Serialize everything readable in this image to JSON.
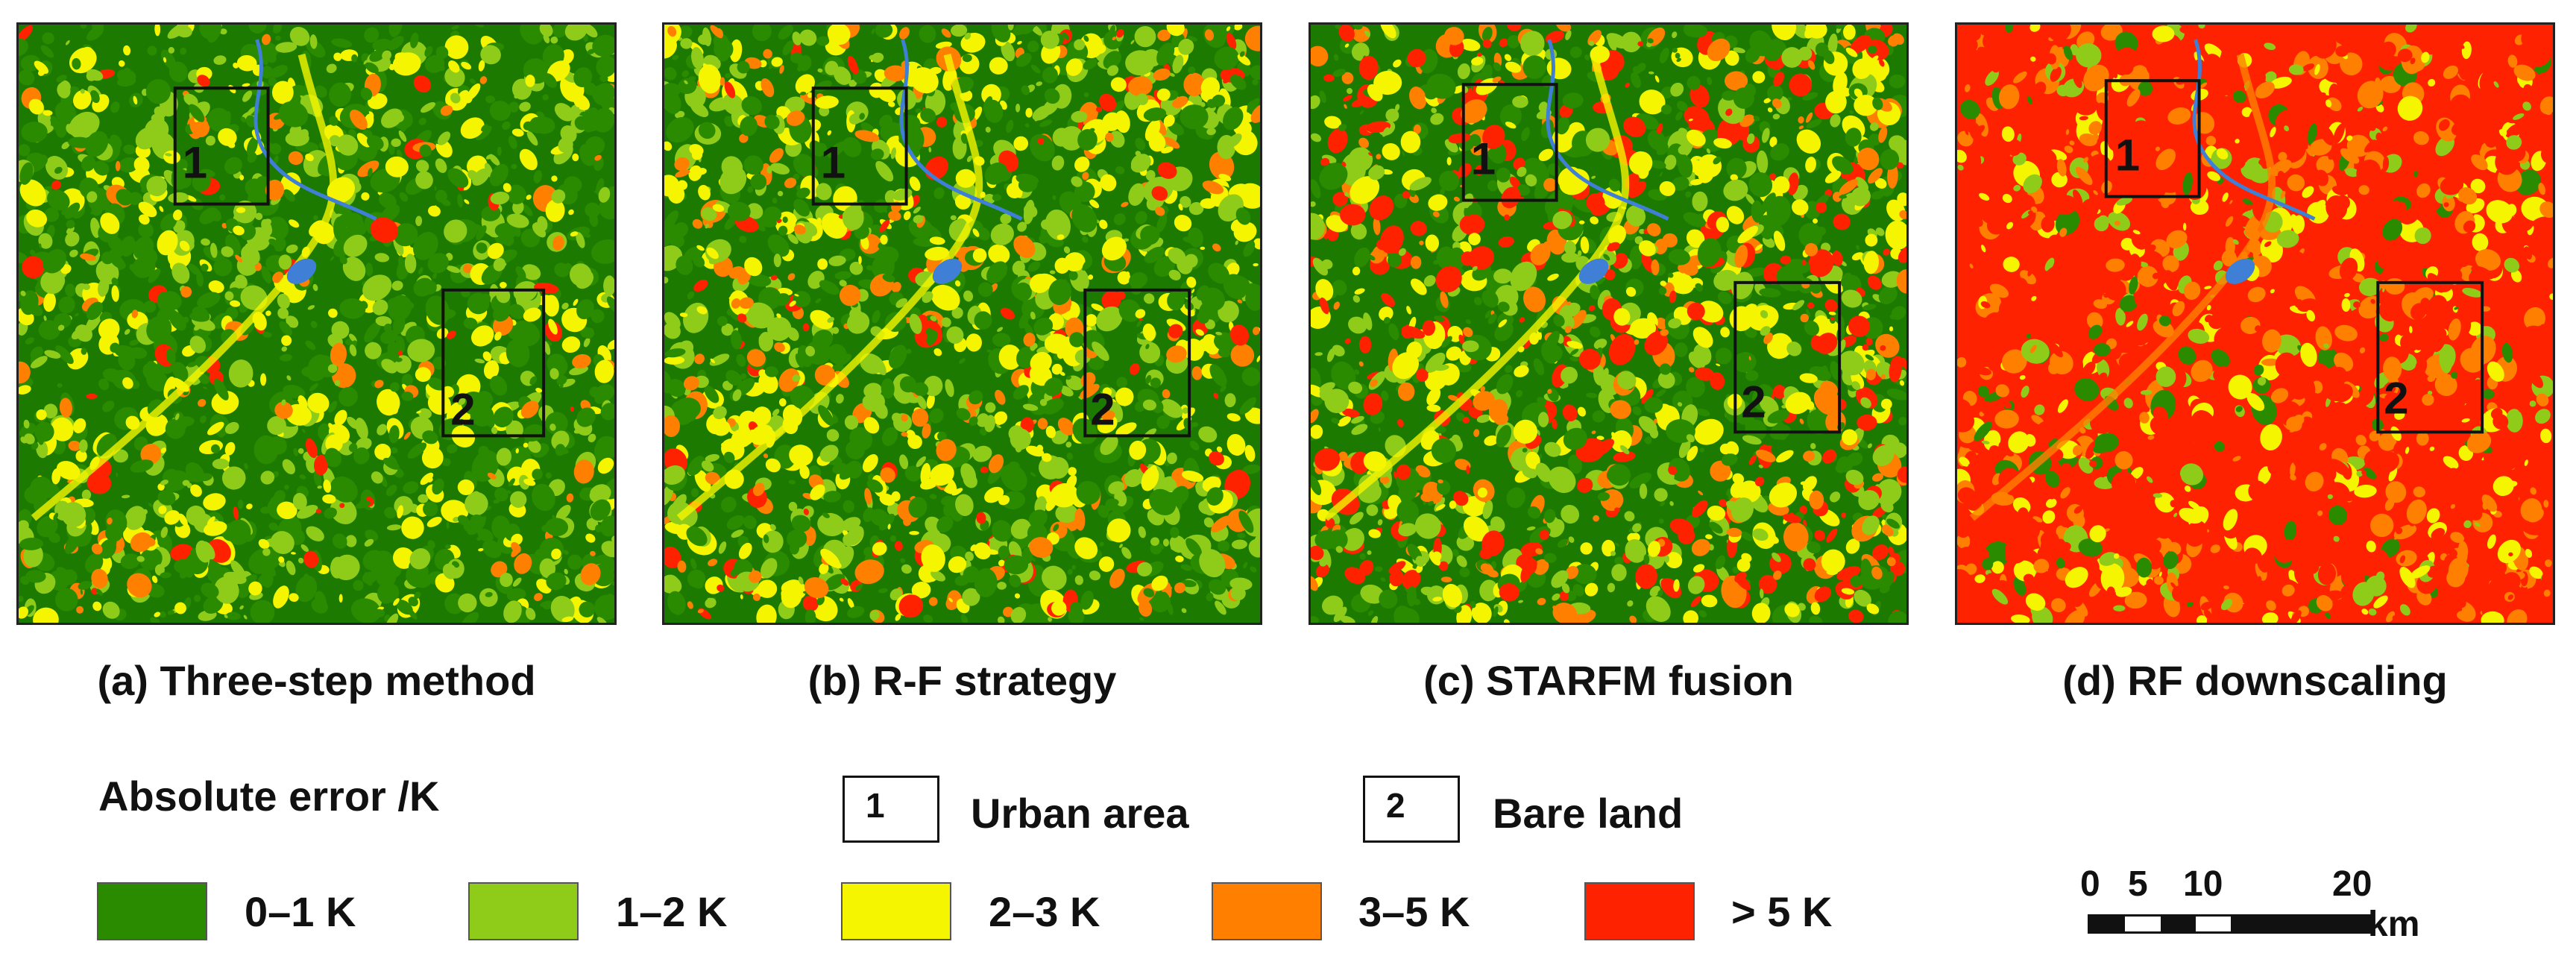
{
  "colors": {
    "c0_1": "#2a8a00",
    "c1_2": "#8fcc1a",
    "c2_3": "#f5f500",
    "c3_5": "#ff8000",
    "c5_plus": "#ff2200",
    "water": "#3f7fd6",
    "base_dark": "#1d7a00"
  },
  "panels": [
    {
      "id": "a",
      "caption": "(a) Three-step method",
      "box1": "1",
      "box2": "2"
    },
    {
      "id": "b",
      "caption": "(b) R-F strategy",
      "box1": "1",
      "box2": "2"
    },
    {
      "id": "c",
      "caption": "(c) STARFM fusion",
      "box1": "1",
      "box2": "2"
    },
    {
      "id": "d",
      "caption": "(d) RF downscaling",
      "box1": "1",
      "box2": "2"
    }
  ],
  "legend": {
    "title": "Absolute error /K",
    "classes": [
      {
        "label": "0–1 K",
        "color": "#2a8a00"
      },
      {
        "label": "1–2 K",
        "color": "#8fcc1a"
      },
      {
        "label": "2–3 K",
        "color": "#f5f500"
      },
      {
        "label": "3–5 K",
        "color": "#ff8000"
      },
      {
        "label": "> 5 K",
        "color": "#ff2200"
      }
    ],
    "box_keys": [
      {
        "number": "1",
        "label": "Urban area"
      },
      {
        "number": "2",
        "label": "Bare land"
      }
    ]
  },
  "scalebar": {
    "ticks": [
      "0",
      "5",
      "10",
      "20"
    ],
    "unit": "km"
  }
}
